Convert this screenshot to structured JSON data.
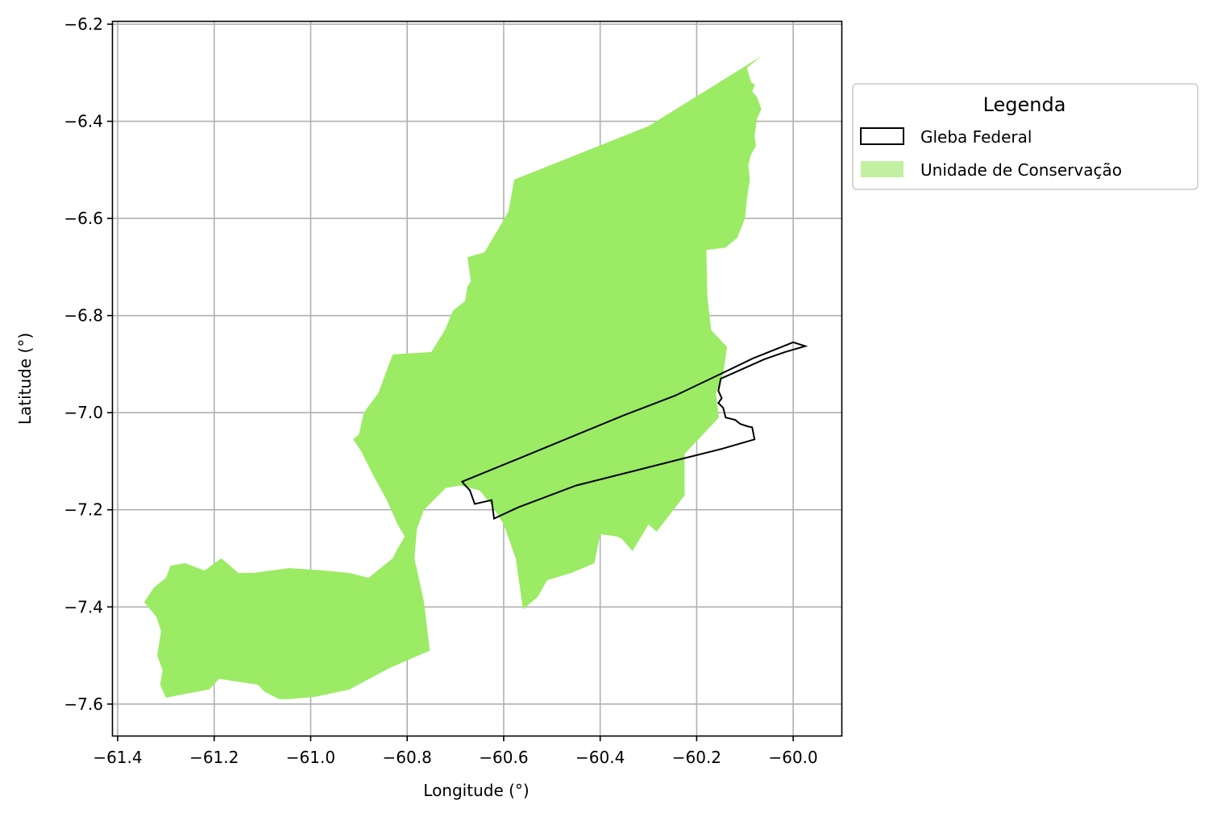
{
  "axes": {
    "xlabel": "Longitude (°)",
    "ylabel": "Latitude (°)",
    "xlim": [
      -61.41,
      -59.9
    ],
    "ylim": [
      -7.665,
      -6.195
    ],
    "xticks": [
      -61.4,
      -61.2,
      -61.0,
      -60.8,
      -60.6,
      -60.4,
      -60.2,
      -60.0
    ],
    "yticks": [
      -6.2,
      -6.4,
      -6.6,
      -6.8,
      -7.0,
      -7.2,
      -7.4,
      -7.6
    ],
    "xtick_labels": [
      "−61.4",
      "−61.2",
      "−61.0",
      "−60.8",
      "−60.6",
      "−60.4",
      "−60.2",
      "−60.0"
    ],
    "ytick_labels": [
      "−6.2",
      "−6.4",
      "−6.6",
      "−6.8",
      "−7.0",
      "−7.2",
      "−7.4",
      "−7.6"
    ],
    "grid": true
  },
  "legend": {
    "title": "Legenda",
    "placement": "outside upper right",
    "items": [
      {
        "label": "Gleba Federal",
        "style": "outline",
        "color": "#000000"
      },
      {
        "label": "Unidade de Conservação",
        "style": "fill",
        "color": "#c3f0a0"
      }
    ]
  },
  "colors": {
    "conservation_fill": "#9beb64",
    "gleba_stroke": "#000000",
    "grid": "#b0b0b0"
  },
  "layers": {
    "unidade_de_conservacao": [
      [
        -60.066,
        -6.266
      ],
      [
        -60.096,
        -6.29
      ],
      [
        -60.087,
        -6.32
      ],
      [
        -60.079,
        -6.325
      ],
      [
        -60.085,
        -6.338
      ],
      [
        -60.075,
        -6.35
      ],
      [
        -60.066,
        -6.375
      ],
      [
        -60.075,
        -6.395
      ],
      [
        -60.08,
        -6.43
      ],
      [
        -60.077,
        -6.45
      ],
      [
        -60.088,
        -6.47
      ],
      [
        -60.093,
        -6.49
      ],
      [
        -60.09,
        -6.52
      ],
      [
        -60.096,
        -6.56
      ],
      [
        -60.1,
        -6.6
      ],
      [
        -60.116,
        -6.64
      ],
      [
        -60.14,
        -6.66
      ],
      [
        -60.18,
        -6.665
      ],
      [
        -60.178,
        -6.76
      ],
      [
        -60.17,
        -6.83
      ],
      [
        -60.137,
        -6.865
      ],
      [
        -60.145,
        -6.92
      ],
      [
        -60.16,
        -6.96
      ],
      [
        -60.154,
        -7.01
      ],
      [
        -60.225,
        -7.085
      ],
      [
        -60.225,
        -7.17
      ],
      [
        -60.283,
        -7.245
      ],
      [
        -60.3,
        -7.23
      ],
      [
        -60.333,
        -7.285
      ],
      [
        -60.355,
        -7.26
      ],
      [
        -60.365,
        -7.255
      ],
      [
        -60.4,
        -7.25
      ],
      [
        -60.412,
        -7.31
      ],
      [
        -60.46,
        -7.33
      ],
      [
        -60.51,
        -7.345
      ],
      [
        -60.53,
        -7.38
      ],
      [
        -60.56,
        -7.405
      ],
      [
        -60.575,
        -7.3
      ],
      [
        -60.6,
        -7.23
      ],
      [
        -60.625,
        -7.19
      ],
      [
        -60.65,
        -7.16
      ],
      [
        -60.69,
        -7.15
      ],
      [
        -60.72,
        -7.155
      ],
      [
        -60.765,
        -7.2
      ],
      [
        -60.78,
        -7.24
      ],
      [
        -60.785,
        -7.3
      ],
      [
        -60.765,
        -7.39
      ],
      [
        -60.753,
        -7.49
      ],
      [
        -60.835,
        -7.525
      ],
      [
        -60.92,
        -7.57
      ],
      [
        -60.99,
        -7.585
      ],
      [
        -61.045,
        -7.59
      ],
      [
        -61.065,
        -7.59
      ],
      [
        -61.095,
        -7.575
      ],
      [
        -61.11,
        -7.56
      ],
      [
        -61.19,
        -7.548
      ],
      [
        -61.21,
        -7.57
      ],
      [
        -61.265,
        -7.58
      ],
      [
        -61.3,
        -7.587
      ],
      [
        -61.312,
        -7.56
      ],
      [
        -61.307,
        -7.53
      ],
      [
        -61.318,
        -7.5
      ],
      [
        -61.31,
        -7.45
      ],
      [
        -61.32,
        -7.42
      ],
      [
        -61.345,
        -7.39
      ],
      [
        -61.325,
        -7.36
      ],
      [
        -61.3,
        -7.34
      ],
      [
        -61.29,
        -7.315
      ],
      [
        -61.26,
        -7.31
      ],
      [
        -61.22,
        -7.325
      ],
      [
        -61.185,
        -7.3
      ],
      [
        -61.15,
        -7.33
      ],
      [
        -61.12,
        -7.33
      ],
      [
        -61.045,
        -7.32
      ],
      [
        -60.97,
        -7.325
      ],
      [
        -60.92,
        -7.33
      ],
      [
        -60.88,
        -7.34
      ],
      [
        -60.83,
        -7.3
      ],
      [
        -60.82,
        -7.28
      ],
      [
        -60.805,
        -7.255
      ],
      [
        -60.82,
        -7.23
      ],
      [
        -60.842,
        -7.18
      ],
      [
        -60.87,
        -7.13
      ],
      [
        -60.895,
        -7.08
      ],
      [
        -60.912,
        -7.055
      ],
      [
        -60.9,
        -7.045
      ],
      [
        -60.89,
        -7.0
      ],
      [
        -60.86,
        -6.96
      ],
      [
        -60.83,
        -6.88
      ],
      [
        -60.75,
        -6.875
      ],
      [
        -60.722,
        -6.83
      ],
      [
        -60.705,
        -6.79
      ],
      [
        -60.68,
        -6.77
      ],
      [
        -60.675,
        -6.74
      ],
      [
        -60.668,
        -6.73
      ],
      [
        -60.675,
        -6.68
      ],
      [
        -60.64,
        -6.67
      ],
      [
        -60.61,
        -6.62
      ],
      [
        -60.59,
        -6.585
      ],
      [
        -60.578,
        -6.52
      ],
      [
        -60.3,
        -6.41
      ]
    ],
    "gleba_federal": [
      [
        -60.686,
        -7.142
      ],
      [
        -60.57,
        -7.095
      ],
      [
        -60.46,
        -7.05
      ],
      [
        -60.35,
        -7.005
      ],
      [
        -60.245,
        -6.965
      ],
      [
        -60.15,
        -6.92
      ],
      [
        -60.083,
        -6.888
      ],
      [
        -60.025,
        -6.865
      ],
      [
        -60.0,
        -6.855
      ],
      [
        -59.975,
        -6.863
      ],
      [
        -60.017,
        -6.875
      ],
      [
        -60.06,
        -6.89
      ],
      [
        -60.105,
        -6.91
      ],
      [
        -60.15,
        -6.93
      ],
      [
        -60.155,
        -6.955
      ],
      [
        -60.148,
        -6.97
      ],
      [
        -60.155,
        -6.98
      ],
      [
        -60.145,
        -6.99
      ],
      [
        -60.14,
        -7.01
      ],
      [
        -60.12,
        -7.015
      ],
      [
        -60.11,
        -7.023
      ],
      [
        -60.095,
        -7.028
      ],
      [
        -60.085,
        -7.03
      ],
      [
        -60.08,
        -7.055
      ],
      [
        -60.15,
        -7.075
      ],
      [
        -60.23,
        -7.095
      ],
      [
        -60.33,
        -7.12
      ],
      [
        -60.45,
        -7.15
      ],
      [
        -60.57,
        -7.195
      ],
      [
        -60.62,
        -7.218
      ],
      [
        -60.625,
        -7.18
      ],
      [
        -60.66,
        -7.188
      ],
      [
        -60.67,
        -7.16
      ],
      [
        -60.682,
        -7.147
      ]
    ]
  }
}
